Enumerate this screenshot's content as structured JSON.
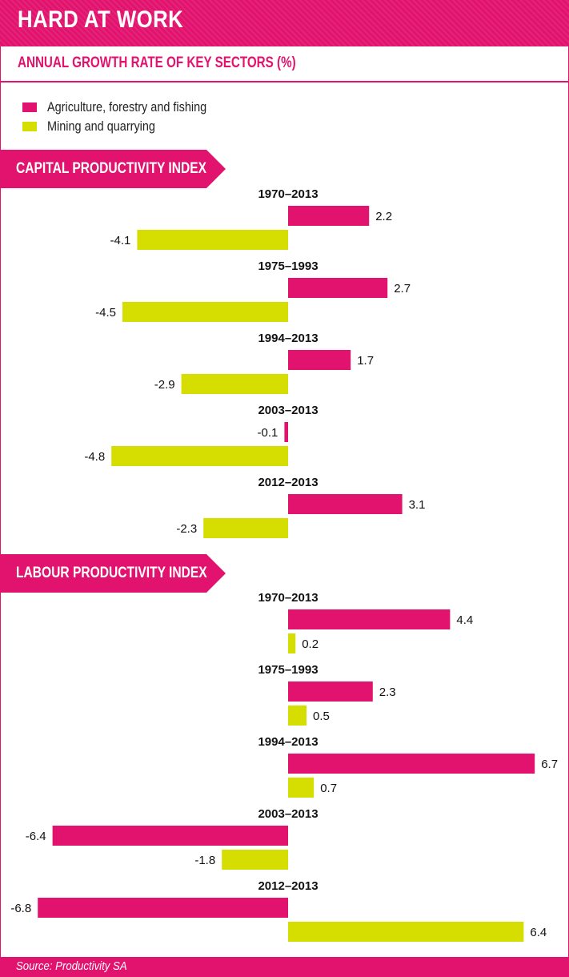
{
  "title": "HARD AT WORK",
  "subtitle": "ANNUAL GROWTH RATE OF KEY SECTORS (%)",
  "legend": [
    {
      "label": "Agriculture, forestry and fishing",
      "color": "#e2136e"
    },
    {
      "label": "Mining and quarrying",
      "color": "#d6dd00"
    }
  ],
  "source": "Source: Productivity SA",
  "colors": {
    "accent": "#e2136e",
    "secondary": "#d6dd00"
  },
  "chart_data": [
    {
      "type": "bar",
      "orientation": "horizontal",
      "title": "CAPITAL PRODUCTIVITY INDEX",
      "categories": [
        "1970–2013",
        "1975–1993",
        "1994–2013",
        "2003–2013",
        "2012–2013"
      ],
      "series": [
        {
          "name": "Agriculture, forestry and fishing",
          "values": [
            2.2,
            2.7,
            1.7,
            -0.1,
            3.1
          ]
        },
        {
          "name": "Mining and quarrying",
          "values": [
            -4.1,
            -4.5,
            -2.9,
            -4.8,
            -2.3
          ]
        }
      ]
    },
    {
      "type": "bar",
      "orientation": "horizontal",
      "title": "LABOUR PRODUCTIVITY INDEX",
      "categories": [
        "1970–2013",
        "1975–1993",
        "1994–2013",
        "2003–2013",
        "2012–2013"
      ],
      "series": [
        {
          "name": "Agriculture, forestry and fishing",
          "values": [
            4.4,
            2.3,
            6.7,
            -6.4,
            -6.8
          ]
        },
        {
          "name": "Mining and quarrying",
          "values": [
            0.2,
            0.5,
            0.7,
            -1.8,
            6.4
          ]
        }
      ]
    }
  ]
}
